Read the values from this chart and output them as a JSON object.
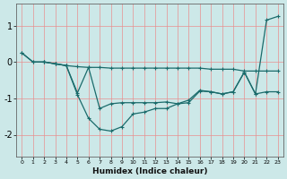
{
  "xlabel": "Humidex (Indice chaleur)",
  "bg_color": "#cce8e8",
  "line_color": "#1a6b6b",
  "grid_color": "#e89090",
  "xlim": [
    -0.5,
    23.5
  ],
  "ylim": [
    -2.6,
    1.6
  ],
  "yticks": [
    -2,
    -1,
    0,
    1
  ],
  "xtick_labels": [
    "0",
    "1",
    "2",
    "3",
    "4",
    "5",
    "6",
    "7",
    "8",
    "9",
    "10",
    "11",
    "12",
    "13",
    "14",
    "15",
    "16",
    "17",
    "18",
    "19",
    "20",
    "21",
    "22",
    "23"
  ],
  "line1_x": [
    0,
    1,
    2,
    3,
    4,
    5,
    6,
    7,
    8,
    9,
    10,
    11,
    12,
    13,
    14,
    15,
    16,
    17,
    18,
    19,
    20,
    21,
    22,
    23
  ],
  "line1_y": [
    0.25,
    0.0,
    0.0,
    -0.05,
    -0.1,
    -0.13,
    -0.15,
    -0.15,
    -0.17,
    -0.17,
    -0.17,
    -0.17,
    -0.17,
    -0.17,
    -0.17,
    -0.17,
    -0.17,
    -0.2,
    -0.2,
    -0.2,
    -0.25,
    -0.25,
    -0.25,
    -0.25
  ],
  "line2_x": [
    0,
    1,
    2,
    3,
    4,
    5,
    6,
    7,
    8,
    9,
    10,
    11,
    12,
    13,
    14,
    15,
    16,
    17,
    18,
    19,
    20,
    21,
    22,
    23
  ],
  "line2_y": [
    0.25,
    0.0,
    0.0,
    -0.05,
    -0.1,
    -0.9,
    -1.55,
    -1.85,
    -1.9,
    -1.78,
    -1.43,
    -1.38,
    -1.28,
    -1.28,
    -1.15,
    -1.12,
    -0.8,
    -0.82,
    -0.88,
    -0.82,
    -0.28,
    -0.88,
    1.15,
    1.25
  ],
  "line3_x": [
    2,
    3,
    4,
    5,
    6,
    7,
    8,
    9,
    10,
    11,
    12,
    13,
    14,
    15,
    16,
    17,
    18,
    19,
    20,
    21,
    22,
    23
  ],
  "line3_y": [
    0.0,
    -0.05,
    -0.1,
    -0.85,
    -0.15,
    -1.28,
    -1.15,
    -1.12,
    -1.12,
    -1.12,
    -1.12,
    -1.1,
    -1.15,
    -1.05,
    -0.78,
    -0.82,
    -0.88,
    -0.82,
    -0.28,
    -0.88,
    -0.82,
    -0.82
  ]
}
